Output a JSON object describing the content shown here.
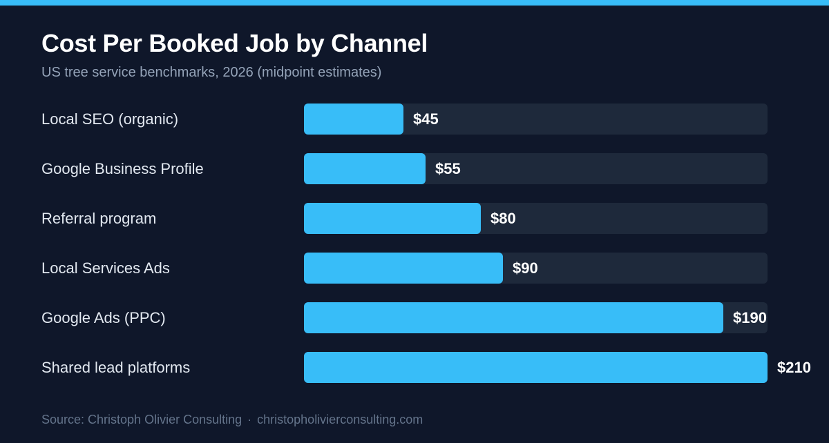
{
  "colors": {
    "background": "#0f172a",
    "accent": "#38bdf8",
    "track": "#1e293b",
    "title": "#ffffff",
    "subtitle": "#94a3b8",
    "label": "#e2e8f0",
    "footer": "#64748b"
  },
  "chart_data": {
    "type": "bar",
    "orientation": "horizontal",
    "title": "Cost Per Booked Job by Channel",
    "subtitle": "US tree service benchmarks, 2026 (midpoint estimates)",
    "categories": [
      "Local SEO (organic)",
      "Google Business Profile",
      "Referral program",
      "Local Services Ads",
      "Google Ads (PPC)",
      "Shared lead platforms"
    ],
    "values": [
      45,
      55,
      80,
      90,
      190,
      210
    ],
    "value_labels": [
      "$45",
      "$55",
      "$80",
      "$90",
      "$190",
      "$210"
    ],
    "xlim": [
      0,
      210
    ],
    "grid": false,
    "legend": "none"
  },
  "footer": {
    "source": "Source: Christoph Olivier Consulting",
    "separator": "·",
    "url": "christopholivierconsulting.com"
  }
}
